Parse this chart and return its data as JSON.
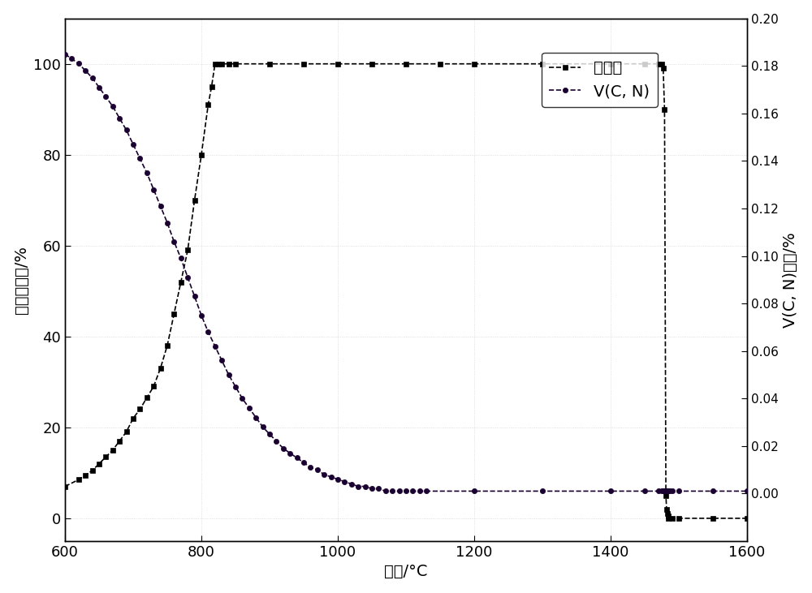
{
  "xlabel": "温度/°C",
  "ylabel_left": "奥氏体含量/%",
  "ylabel_right": "V(C, N)含量/%",
  "xlim": [
    600,
    1600
  ],
  "ylim_left": [
    -5,
    110
  ],
  "ylim_right": [
    -0.02,
    0.2
  ],
  "legend_labels": [
    "奥氏体",
    "V(C, N)"
  ],
  "austenite_color": "#000000",
  "vcn_color": "#1a1a2e",
  "austenite_x": [
    600,
    620,
    630,
    640,
    650,
    660,
    670,
    680,
    690,
    700,
    710,
    720,
    730,
    740,
    750,
    760,
    770,
    780,
    790,
    800,
    810,
    815,
    820,
    825,
    830,
    840,
    850,
    900,
    950,
    1000,
    1050,
    1100,
    1150,
    1200,
    1300,
    1400,
    1450,
    1470,
    1475,
    1477,
    1479,
    1481,
    1482,
    1483,
    1484,
    1485,
    1490,
    1500,
    1550,
    1600
  ],
  "austenite_y": [
    7,
    8.5,
    9.5,
    10.5,
    12,
    13.5,
    15,
    17,
    19,
    22,
    24,
    26.5,
    29,
    33,
    38,
    45,
    52,
    59,
    70,
    80,
    91,
    95,
    100,
    100,
    100,
    100,
    100,
    100,
    100,
    100,
    100,
    100,
    100,
    100,
    100,
    100,
    100,
    100,
    100,
    99,
    90,
    5,
    2,
    1,
    0.5,
    0,
    0,
    0,
    0,
    0
  ],
  "vcn_x": [
    600,
    610,
    620,
    630,
    640,
    650,
    660,
    670,
    680,
    690,
    700,
    710,
    720,
    730,
    740,
    750,
    760,
    770,
    780,
    790,
    800,
    810,
    820,
    830,
    840,
    850,
    860,
    870,
    880,
    890,
    900,
    910,
    920,
    930,
    940,
    950,
    960,
    970,
    980,
    990,
    1000,
    1010,
    1020,
    1030,
    1040,
    1050,
    1060,
    1070,
    1080,
    1090,
    1100,
    1110,
    1120,
    1130,
    1200,
    1300,
    1400,
    1450,
    1470,
    1475,
    1477,
    1479,
    1481,
    1483,
    1485,
    1487,
    1490,
    1500,
    1550,
    1600
  ],
  "vcn_y": [
    0.185,
    0.183,
    0.181,
    0.178,
    0.175,
    0.171,
    0.167,
    0.163,
    0.158,
    0.153,
    0.147,
    0.141,
    0.135,
    0.128,
    0.121,
    0.114,
    0.106,
    0.099,
    0.091,
    0.083,
    0.075,
    0.068,
    0.062,
    0.056,
    0.05,
    0.045,
    0.04,
    0.036,
    0.032,
    0.028,
    0.025,
    0.022,
    0.019,
    0.017,
    0.015,
    0.013,
    0.011,
    0.01,
    0.008,
    0.007,
    0.006,
    0.005,
    0.004,
    0.003,
    0.003,
    0.002,
    0.002,
    0.001,
    0.001,
    0.001,
    0.001,
    0.001,
    0.001,
    0.001,
    0.001,
    0.001,
    0.001,
    0.001,
    0.001,
    0.001,
    0.001,
    0.001,
    0.001,
    0.001,
    0.001,
    0.001,
    0.001,
    0.001,
    0.001,
    0.001
  ]
}
